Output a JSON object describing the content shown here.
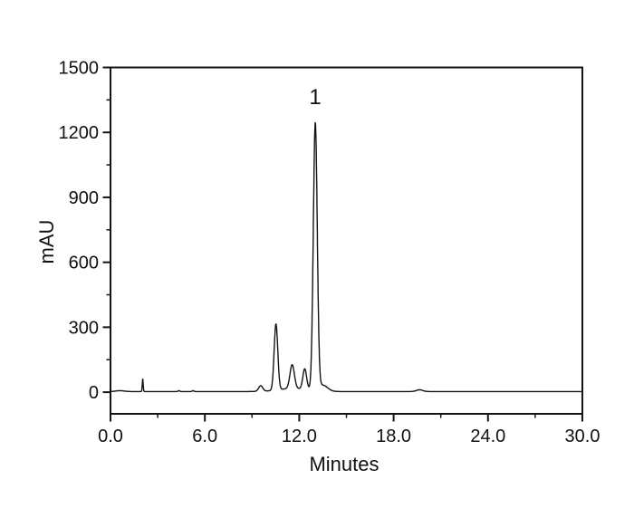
{
  "figure": {
    "background": "#ffffff",
    "line_color": "#141414",
    "text_color": "#111111"
  },
  "chart_data": {
    "type": "line",
    "title": "",
    "xlabel": "Minutes",
    "ylabel": "mAU",
    "xlim": [
      0.0,
      30.0
    ],
    "ylim": [
      -100,
      1500
    ],
    "grid": false,
    "legend": null,
    "x_major_ticks": [
      0,
      6,
      12,
      18,
      24,
      30
    ],
    "x_tick_labels": [
      "0.0",
      "6.0",
      "12.0",
      "18.0",
      "24.0",
      "30.0"
    ],
    "x_minor_ticks": [
      3,
      9,
      15,
      21,
      27
    ],
    "y_major_ticks": [
      0,
      300,
      600,
      900,
      1200,
      1500
    ],
    "y_tick_labels": [
      "0",
      "300",
      "600",
      "900",
      "1200",
      "1500"
    ],
    "y_minor_ticks": [
      150,
      450,
      750,
      1050,
      1350
    ],
    "baseline_mau": 3,
    "series": [
      {
        "name": "chromatogram-trace",
        "color": "#141414",
        "peaks": [
          {
            "rt_min": 0.6,
            "height_mau": 4,
            "sigma_min": 0.25
          },
          {
            "rt_min": 2.05,
            "height_mau": 57,
            "sigma_min": 0.03
          },
          {
            "rt_min": 4.35,
            "height_mau": 4,
            "sigma_min": 0.05
          },
          {
            "rt_min": 5.25,
            "height_mau": 4,
            "sigma_min": 0.05
          },
          {
            "rt_min": 9.55,
            "height_mau": 26,
            "sigma_min": 0.13
          },
          {
            "rt_min": 10.52,
            "height_mau": 305,
            "sigma_min": 0.115
          },
          {
            "rt_min": 11.55,
            "height_mau": 110,
            "sigma_min": 0.14
          },
          {
            "rt_min": 11.6,
            "height_mau": 14,
            "sigma_min": 0.9
          },
          {
            "rt_min": 12.35,
            "height_mau": 95,
            "sigma_min": 0.12
          },
          {
            "rt_min": 13.02,
            "height_mau": 1230,
            "sigma_min": 0.125
          },
          {
            "rt_min": 13.5,
            "height_mau": 28,
            "sigma_min": 0.3
          },
          {
            "rt_min": 19.65,
            "height_mau": 8,
            "sigma_min": 0.2
          }
        ]
      }
    ],
    "annotations": [
      {
        "label": "1",
        "x_min": 13.02,
        "y_mau": 1330
      }
    ]
  }
}
